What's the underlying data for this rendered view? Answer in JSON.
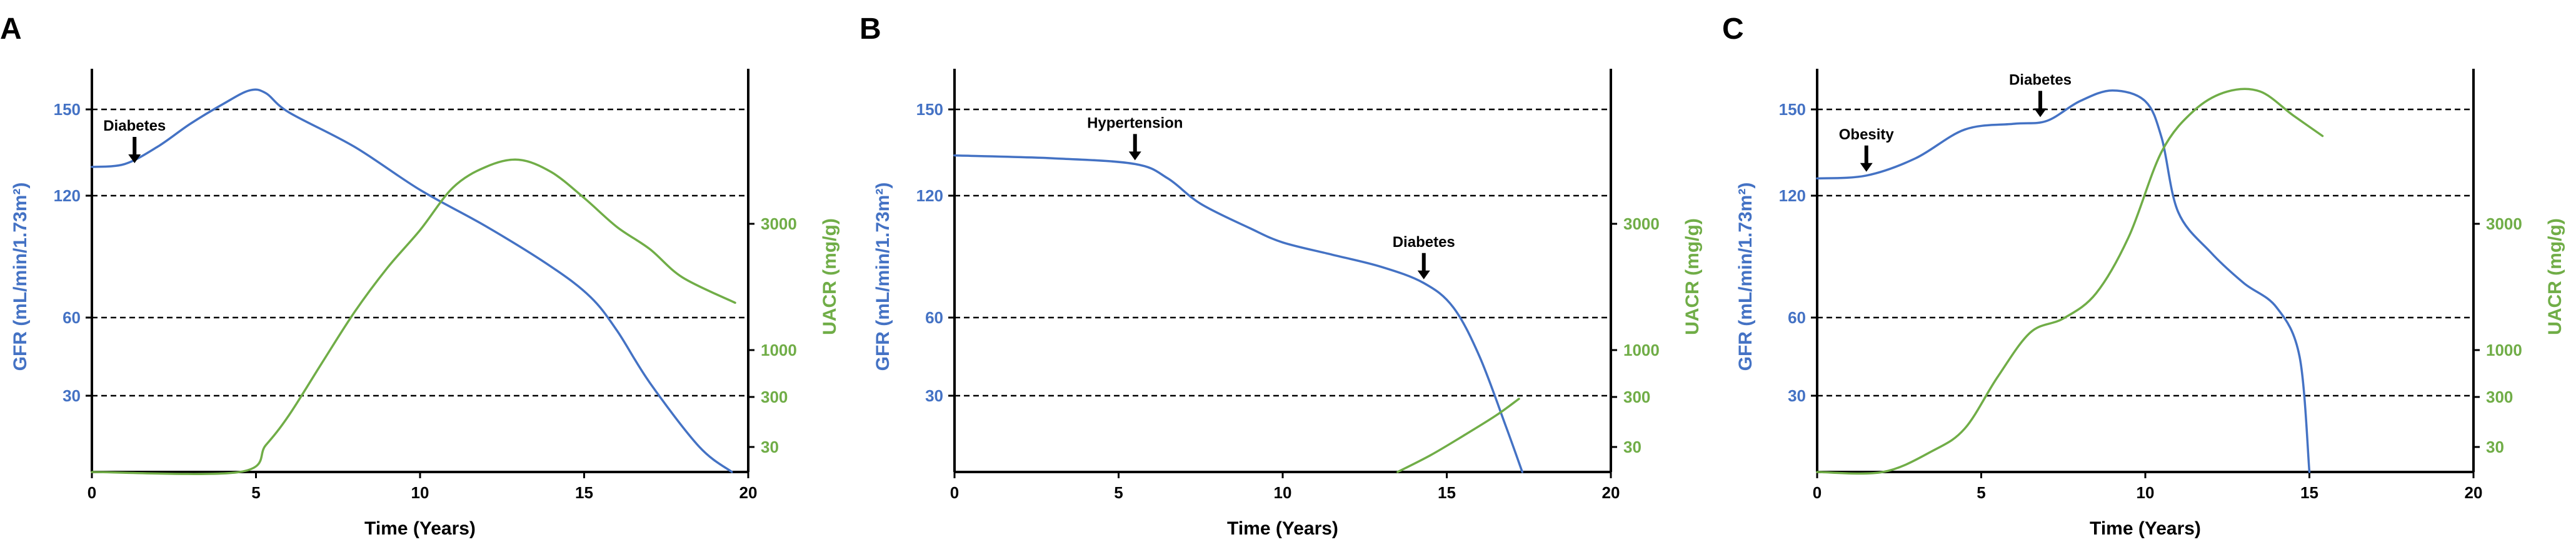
{
  "colors": {
    "gfr": "#4472C4",
    "uacr": "#70AD47",
    "axis": "#000000",
    "grid": "#000000"
  },
  "chart_data": [
    {
      "panel": "A",
      "type": "line",
      "xlabel": "Time (Years)",
      "ylabel_left": "GFR (mL/min/1.73m²)",
      "ylabel_right": "UACR (mg/g)",
      "x_ticks": [
        "0",
        "5",
        "10",
        "15",
        "20"
      ],
      "gfr_ticks": [
        "30",
        "60",
        "120",
        "150"
      ],
      "uacr_ticks": [
        "30",
        "300",
        "1000",
        "3000"
      ],
      "grid_lines_at_gfr": [
        "30",
        "60",
        "120",
        "150"
      ],
      "xlim": [
        0,
        20
      ],
      "series": [
        {
          "axis": "left",
          "values": [
            [
              0,
              130
            ],
            [
              1,
              131
            ],
            [
              2,
              137
            ],
            [
              3,
              145
            ],
            [
              4,
              152
            ],
            [
              4.8,
              157
            ],
            [
              5.3,
              156
            ],
            [
              6,
              149
            ],
            [
              8,
              137
            ],
            [
              10,
              122
            ],
            [
              12,
              105
            ],
            [
              14,
              85
            ],
            [
              15.2,
              70
            ],
            [
              16,
              55
            ],
            [
              17,
              35
            ],
            [
              18.5,
              10
            ],
            [
              19.5,
              0
            ]
          ]
        },
        {
          "axis": "right",
          "values": [
            [
              0,
              0
            ],
            [
              4.5,
              0
            ],
            [
              5.3,
              40
            ],
            [
              6,
              200
            ],
            [
              7,
              800
            ],
            [
              8,
              1600
            ],
            [
              9,
              2300
            ],
            [
              10,
              2900
            ],
            [
              11,
              3350
            ],
            [
              12,
              3550
            ],
            [
              13,
              3620
            ],
            [
              14,
              3500
            ],
            [
              15,
              3250
            ],
            [
              16,
              2950
            ],
            [
              17,
              2600
            ],
            [
              18,
              2150
            ],
            [
              19.6,
              1750
            ]
          ]
        }
      ],
      "annotations": [
        {
          "text": "Diabetes",
          "x": 1.3,
          "y": 130
        }
      ]
    },
    {
      "panel": "B",
      "type": "line",
      "xlabel": "Time (Years)",
      "ylabel_left": "GFR (mL/min/1.73m²)",
      "ylabel_right": "UACR (mg/g)",
      "x_ticks": [
        "0",
        "5",
        "10",
        "15",
        "20"
      ],
      "gfr_ticks": [
        "30",
        "60",
        "120",
        "150"
      ],
      "uacr_ticks": [
        "30",
        "300",
        "1000",
        "3000"
      ],
      "grid_lines_at_gfr": [
        "30",
        "60",
        "120",
        "150"
      ],
      "xlim": [
        0,
        20
      ],
      "series": [
        {
          "axis": "left",
          "values": [
            [
              0,
              134
            ],
            [
              3,
              133
            ],
            [
              5.5,
              131
            ],
            [
              6.5,
              126
            ],
            [
              7.5,
              116
            ],
            [
              9,
              104
            ],
            [
              10,
              97
            ],
            [
              11.5,
              91
            ],
            [
              13,
              85
            ],
            [
              14.3,
              77
            ],
            [
              15.2,
              65
            ],
            [
              16,
              45
            ],
            [
              16.8,
              18
            ],
            [
              17.3,
              0
            ]
          ]
        },
        {
          "axis": "right",
          "values": [
            [
              13.5,
              0
            ],
            [
              14.5,
              20
            ],
            [
              15.5,
              90
            ],
            [
              16.5,
              200
            ],
            [
              17.2,
              290
            ]
          ]
        }
      ],
      "annotations": [
        {
          "text": "Hypertension",
          "x": 5.5,
          "y": 131
        },
        {
          "text": "Diabetes",
          "x": 14.3,
          "y": 77
        }
      ]
    },
    {
      "panel": "C",
      "type": "line",
      "xlabel": "Time (Years)",
      "ylabel_left": "GFR (mL/min/1.73m²)",
      "ylabel_right": "UACR (mg/g)",
      "x_ticks": [
        "0",
        "5",
        "10",
        "15",
        "20"
      ],
      "gfr_ticks": [
        "30",
        "60",
        "120",
        "150"
      ],
      "uacr_ticks": [
        "30",
        "300",
        "1000",
        "3000"
      ],
      "grid_lines_at_gfr": [
        "30",
        "60",
        "120",
        "150"
      ],
      "xlim": [
        0,
        20
      ],
      "series": [
        {
          "axis": "left",
          "values": [
            [
              0,
              126
            ],
            [
              1.5,
              127
            ],
            [
              3,
              133
            ],
            [
              4.5,
              143
            ],
            [
              6,
              145
            ],
            [
              7,
              146
            ],
            [
              8,
              153
            ],
            [
              9,
              157
            ],
            [
              10,
              153
            ],
            [
              10.5,
              140
            ],
            [
              11,
              112
            ],
            [
              12,
              92
            ],
            [
              13,
              77
            ],
            [
              14,
              65
            ],
            [
              14.7,
              45
            ],
            [
              15,
              0
            ]
          ]
        },
        {
          "axis": "right",
          "values": [
            [
              0,
              0
            ],
            [
              2,
              0
            ],
            [
              3.5,
              25
            ],
            [
              4.5,
              130
            ],
            [
              5.5,
              600
            ],
            [
              6.5,
              1280
            ],
            [
              7.5,
              1500
            ],
            [
              8.5,
              1900
            ],
            [
              9.5,
              2800
            ],
            [
              10.5,
              3700
            ],
            [
              11.5,
              4100
            ],
            [
              12.5,
              4280
            ],
            [
              13.5,
              4280
            ],
            [
              14.5,
              4050
            ],
            [
              15.4,
              3850
            ]
          ]
        }
      ],
      "annotations": [
        {
          "text": "Obesity",
          "x": 1.5,
          "y": 127
        },
        {
          "text": "Diabetes",
          "x": 6.8,
          "y": 146
        }
      ]
    }
  ]
}
